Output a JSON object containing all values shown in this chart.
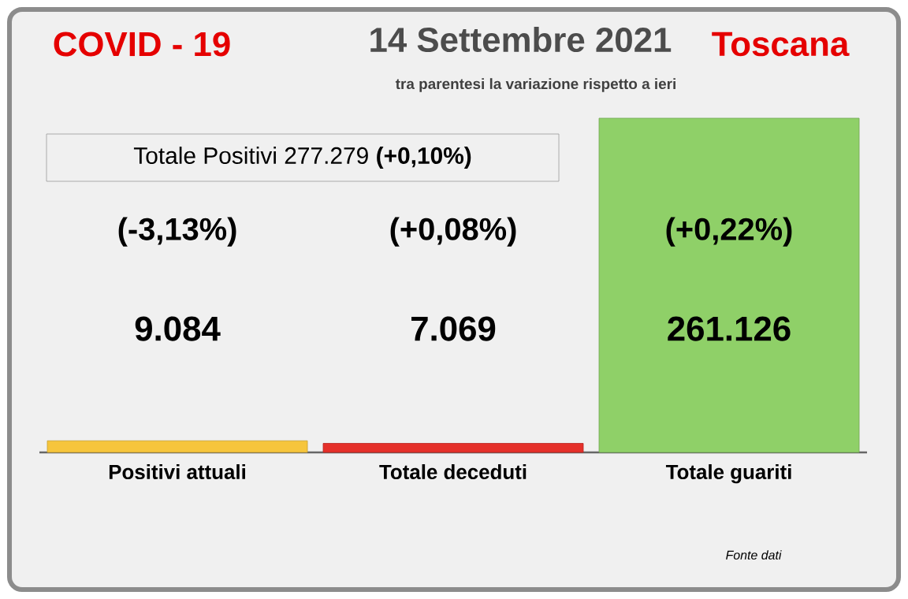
{
  "chart_data": {
    "type": "bar",
    "title": "14 Settembre 2021",
    "subtitle": "tra parentesi la variazione rispetto a ieri",
    "categories": [
      "Positivi attuali",
      "Totale deceduti",
      "Totale guariti"
    ],
    "values": [
      9084,
      7069,
      261126
    ],
    "value_labels": [
      "9.084",
      "7.069",
      "261.126"
    ],
    "colors": [
      "#f6c53c",
      "#e5302a",
      "#8fd068"
    ],
    "annotations": [
      "COVID - 19",
      "Toscana",
      "Totale Positivi   277.279 **(+0,10%)**",
      "Fonte dati",
      "(-3,13%)",
      "(+0,08%)",
      "(+0,22%)"
    ]
  }
}
